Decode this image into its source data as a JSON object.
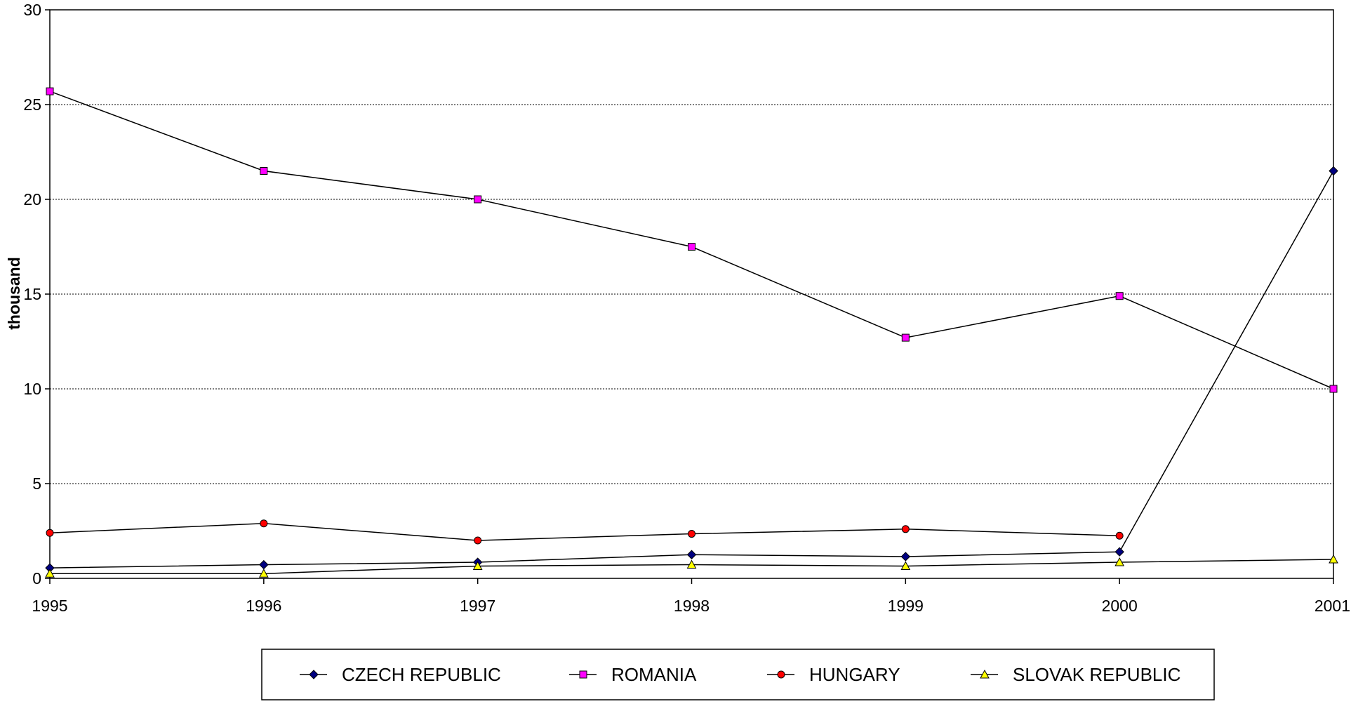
{
  "chart_data": {
    "type": "line",
    "title": "",
    "xlabel": "",
    "ylabel": "thousand",
    "x": [
      "1995",
      "1996",
      "1997",
      "1998",
      "1999",
      "2000",
      "2001"
    ],
    "ylim": [
      0,
      30
    ],
    "yticks": [
      "0",
      "5",
      "10",
      "15",
      "20",
      "25",
      "30"
    ],
    "grid": "horizontal dotted",
    "legend_position": "bottom",
    "series": [
      {
        "name": "CZECH REPUBLIC",
        "marker": "diamond",
        "color": "#000080",
        "values": [
          0.55,
          0.72,
          0.85,
          1.25,
          1.15,
          1.4,
          21.5
        ]
      },
      {
        "name": "ROMANIA",
        "marker": "square",
        "color": "#FF00FF",
        "values": [
          25.7,
          21.5,
          20.0,
          17.5,
          12.7,
          14.9,
          10.0
        ]
      },
      {
        "name": "HUNGARY",
        "marker": "circle",
        "color": "#FF0000",
        "values": [
          2.4,
          2.9,
          2.0,
          2.35,
          2.6,
          2.25,
          null
        ]
      },
      {
        "name": "SLOVAK REPUBLIC",
        "marker": "triangle",
        "color": "#FFFF00",
        "values": [
          0.25,
          0.25,
          0.65,
          0.72,
          0.65,
          0.85,
          1.0
        ]
      }
    ]
  }
}
